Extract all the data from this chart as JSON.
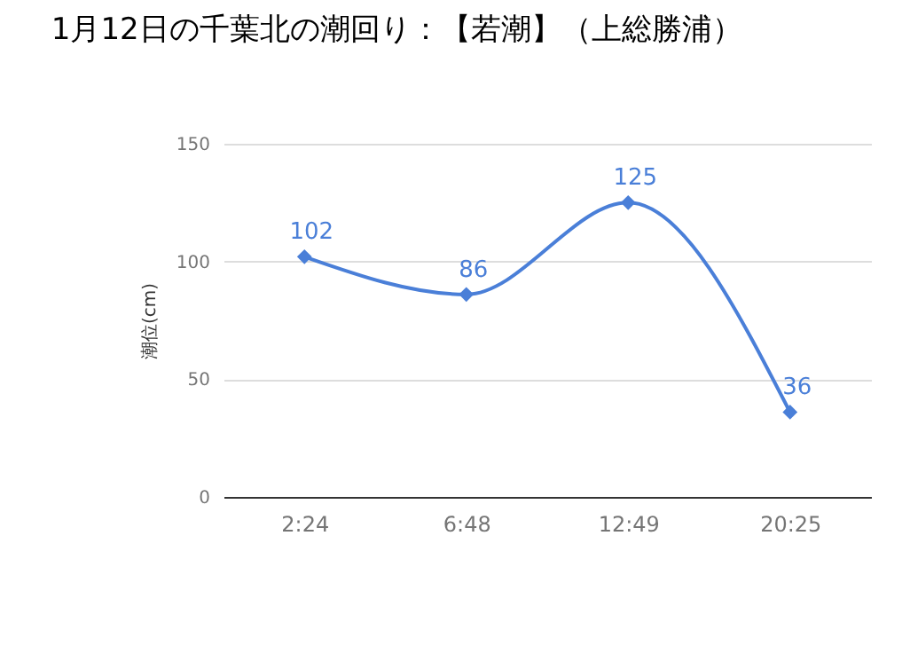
{
  "chart_data": {
    "type": "line",
    "title": "1月12日の千葉北の潮回り：【若潮】（上総勝浦）",
    "ylabel": "潮位(cm)",
    "categories": [
      "2:24",
      "6:48",
      "12:49",
      "20:25"
    ],
    "series": [
      {
        "color": "#4a7fd8",
        "values": [
          102,
          86,
          125,
          36
        ]
      }
    ],
    "ylim": [
      0,
      150
    ],
    "yticks": [
      0,
      50,
      100,
      150
    ],
    "grid": "y",
    "marker": "diamond",
    "line_style": "solid",
    "data_labels": true,
    "legend": false
  }
}
